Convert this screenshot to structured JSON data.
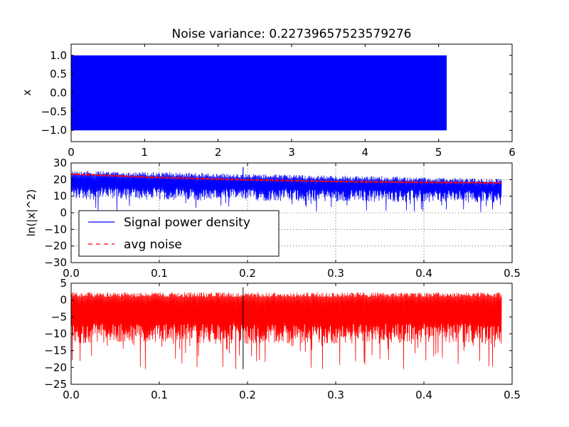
{
  "chart_data": [
    {
      "type": "area",
      "title": "Noise variance: 0.22739657523579276",
      "ylabel": "x",
      "xlabel": "",
      "xlim": [
        0,
        6
      ],
      "ylim": [
        -1.3,
        1.3
      ],
      "x_ticks": [
        "0",
        "1",
        "2",
        "3",
        "4",
        "5",
        "6"
      ],
      "y_ticks": [
        "1.0",
        "0.5",
        "0.0",
        "−0.5",
        "−1.0"
      ],
      "grid": false,
      "series": [
        {
          "x_range": [
            0,
            5.11
          ],
          "y_range": [
            -1.0,
            1.0
          ],
          "color": "#0000ff"
        }
      ]
    },
    {
      "type": "line",
      "ylabel": "ln(|x|^2)",
      "xlabel": "",
      "xlim": [
        0,
        0.5
      ],
      "ylim": [
        -30,
        30
      ],
      "x_ticks": [
        "0.0",
        "0.1",
        "0.2",
        "0.3",
        "0.4",
        "0.5"
      ],
      "y_ticks": [
        "30",
        "20",
        "10",
        "0",
        "−10",
        "−20",
        "−30"
      ],
      "grid": true,
      "legend_position": "lower-left",
      "series": [
        {
          "name": "Signal power density",
          "style": "solid",
          "color": "#0000ff",
          "x_range": [
            0,
            0.488
          ],
          "upper_start": 25.5,
          "upper_end": 20.5,
          "lower_min": 0,
          "spike": {
            "x": 0.195,
            "y": 27.5
          }
        },
        {
          "name": "avg noise",
          "style": "dashed",
          "color": "#ff0000",
          "x": [
            0,
            0.1,
            0.2,
            0.3,
            0.4,
            0.488
          ],
          "values": [
            23.3,
            21.2,
            19.8,
            18.8,
            18.3,
            18.0
          ]
        }
      ]
    },
    {
      "type": "line",
      "ylabel": "",
      "xlabel": "",
      "xlim": [
        0,
        0.5
      ],
      "ylim": [
        -25,
        5
      ],
      "x_ticks": [
        "0.0",
        "0.1",
        "0.2",
        "0.3",
        "0.4",
        "0.5"
      ],
      "y_ticks": [
        "5",
        "0",
        "−5",
        "−10",
        "−15",
        "−20",
        "−25"
      ],
      "grid": false,
      "series": [
        {
          "color": "#ff0000",
          "x_range": [
            0,
            0.488
          ],
          "upper": 2.3,
          "lower_min": -20.5,
          "spike": {
            "x": 0.195,
            "y": 3.8,
            "low": -20.5
          }
        }
      ]
    }
  ]
}
